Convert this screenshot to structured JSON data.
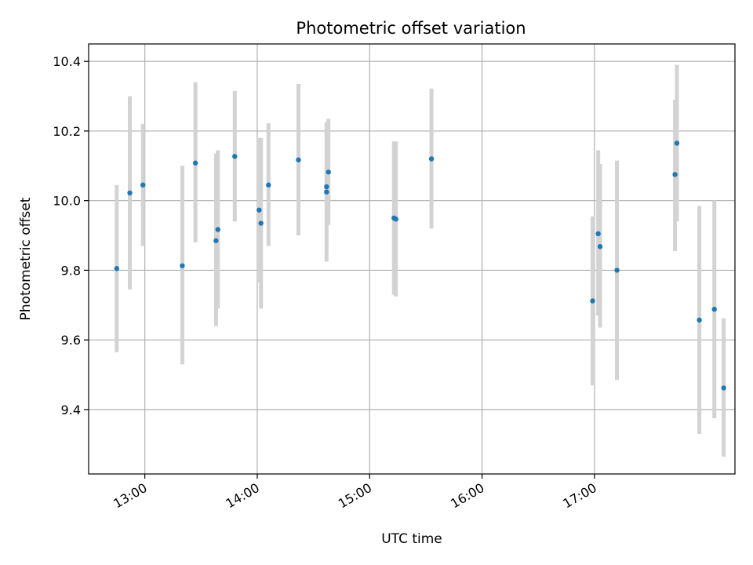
{
  "chart_data": {
    "type": "scatter",
    "title": "Photometric offset variation",
    "xlabel": "UTC time",
    "ylabel": "Photometric offset",
    "xlim": [
      "12:30",
      "18:15"
    ],
    "ylim": [
      9.215,
      10.45
    ],
    "x_ticks": [
      "13:00",
      "14:00",
      "15:00",
      "16:00",
      "17:00"
    ],
    "y_ticks": [
      9.4,
      9.6,
      9.8,
      10.0,
      10.2,
      10.4
    ],
    "grid": true,
    "colors": {
      "point": "#1f77b4",
      "error_bar": "#d3d3d3"
    },
    "series": [
      {
        "points": [
          {
            "x": "12:45",
            "y": 9.805,
            "low": 9.565,
            "high": 10.045
          },
          {
            "x": "12:52",
            "y": 10.022,
            "low": 9.745,
            "high": 10.3
          },
          {
            "x": "12:59",
            "y": 10.045,
            "low": 9.87,
            "high": 10.22
          },
          {
            "x": "13:20",
            "y": 9.813,
            "low": 9.53,
            "high": 10.1
          },
          {
            "x": "13:27",
            "y": 10.108,
            "low": 9.88,
            "high": 10.34
          },
          {
            "x": "13:38",
            "y": 9.885,
            "low": 9.64,
            "high": 10.135
          },
          {
            "x": "13:39",
            "y": 9.917,
            "low": 9.69,
            "high": 10.145
          },
          {
            "x": "13:48",
            "y": 10.127,
            "low": 9.94,
            "high": 10.315
          },
          {
            "x": "14:01",
            "y": 9.973,
            "low": 9.765,
            "high": 10.18
          },
          {
            "x": "14:02",
            "y": 9.935,
            "low": 9.69,
            "high": 10.18
          },
          {
            "x": "14:06",
            "y": 10.045,
            "low": 9.87,
            "high": 10.222
          },
          {
            "x": "14:22",
            "y": 10.117,
            "low": 9.9,
            "high": 10.335
          },
          {
            "x": "14:37",
            "y": 10.025,
            "low": 9.825,
            "high": 10.225
          },
          {
            "x": "14:37",
            "y": 10.04,
            "low": 9.86,
            "high": 10.22
          },
          {
            "x": "14:38",
            "y": 10.082,
            "low": 9.93,
            "high": 10.235
          },
          {
            "x": "15:13",
            "y": 9.95,
            "low": 9.73,
            "high": 10.17
          },
          {
            "x": "15:14",
            "y": 9.947,
            "low": 9.725,
            "high": 10.17
          },
          {
            "x": "15:33",
            "y": 10.12,
            "low": 9.92,
            "high": 10.322
          },
          {
            "x": "16:59",
            "y": 9.712,
            "low": 9.47,
            "high": 9.955
          },
          {
            "x": "17:02",
            "y": 9.905,
            "low": 9.67,
            "high": 10.145
          },
          {
            "x": "17:03",
            "y": 9.868,
            "low": 9.635,
            "high": 10.105
          },
          {
            "x": "17:12",
            "y": 9.8,
            "low": 9.485,
            "high": 10.115
          },
          {
            "x": "17:43",
            "y": 10.075,
            "low": 9.855,
            "high": 10.29
          },
          {
            "x": "17:44",
            "y": 10.165,
            "low": 9.94,
            "high": 10.39
          },
          {
            "x": "17:56",
            "y": 9.657,
            "low": 9.33,
            "high": 9.985
          },
          {
            "x": "18:04",
            "y": 9.688,
            "low": 9.375,
            "high": 10.0
          },
          {
            "x": "18:09",
            "y": 9.462,
            "low": 9.265,
            "high": 9.662
          }
        ]
      }
    ]
  }
}
